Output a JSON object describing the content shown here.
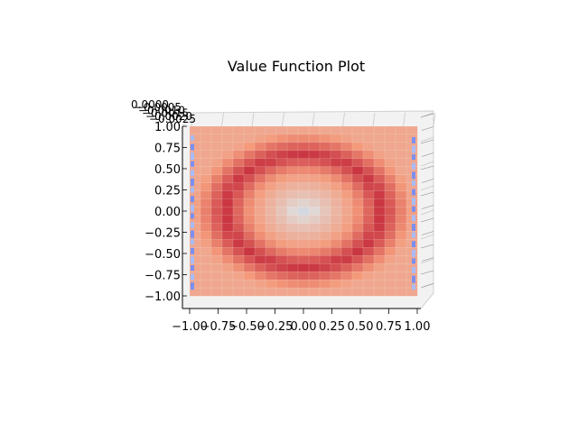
{
  "chart_data": {
    "type": "heatmap",
    "subtype": "3d-surface-top-view",
    "title": "Value Function Plot",
    "xlabel": "",
    "ylabel": "",
    "zlabel": "",
    "xlim": [
      -1.0,
      1.0
    ],
    "ylim": [
      -1.0,
      1.0
    ],
    "x_ticks": [
      "−1.00",
      "−0.75",
      "−0.50",
      "−0.25",
      "0.00",
      "0.25",
      "0.50",
      "0.75",
      "1.00"
    ],
    "y_ticks": [
      "1.00",
      "0.75",
      "0.50",
      "0.25",
      "0.00",
      "−0.25",
      "−0.50",
      "−0.75",
      "−1.00"
    ],
    "z_ticks": [
      "0.0000",
      "−0.0005",
      "−0.0010",
      "−0.0015",
      "−0.0020",
      "−0.0025"
    ],
    "grid": true,
    "colormap": "coolwarm",
    "grid_size": 21,
    "surface": {
      "description": "value over x,y: ring of maximum value at radius ~0.65, lower (lighter) center, lower values toward square edges, lowest (blue) along left/right borders",
      "ring_radius_x": 0.68,
      "ring_radius_y": 0.66,
      "center_peak_value": 0.55,
      "ring_value": 0.92,
      "corner_value": 0.7,
      "edge_value": 0.1
    },
    "colors": {
      "low": "#3b4cc0",
      "mid": "#dddddd",
      "high": "#b40426"
    }
  }
}
